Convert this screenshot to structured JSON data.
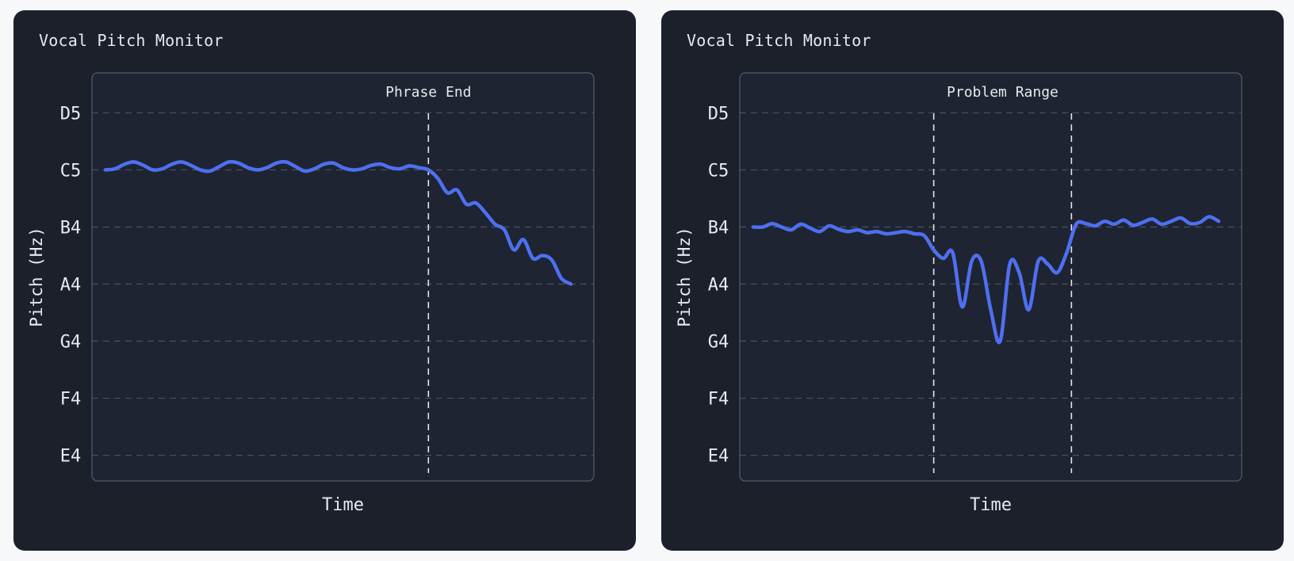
{
  "charts": [
    {
      "title": "Vocal Pitch Monitor",
      "chart_data": {
        "type": "line",
        "title": "Vocal Pitch Monitor",
        "xlabel": "Time",
        "ylabel": "Pitch (Hz)",
        "y_tick_labels": [
          "E4",
          "F4",
          "G4",
          "A4",
          "B4",
          "C5",
          "D5"
        ],
        "y_tick_values": [
          0,
          1,
          2,
          3,
          4,
          5,
          6
        ],
        "xlim": [
          0,
          100
        ],
        "ylim": [
          -0.45,
          6.7
        ],
        "grid": true,
        "markers": [
          {
            "x": 68,
            "label": "Phrase End"
          }
        ],
        "series": [
          {
            "color": "#4f6ff0",
            "x": [
              0,
              2,
              4,
              6,
              8,
              10,
              12,
              14,
              16,
              18,
              20,
              22,
              24,
              26,
              28,
              30,
              32,
              34,
              36,
              38,
              40,
              42,
              44,
              46,
              48,
              50,
              52,
              54,
              56,
              58,
              60,
              62,
              64,
              66,
              68,
              70,
              72,
              74,
              76,
              78,
              80,
              82,
              84,
              86,
              88,
              90,
              92,
              94,
              96,
              98
            ],
            "values": [
              5.0,
              5.02,
              5.1,
              5.14,
              5.08,
              5.0,
              5.02,
              5.1,
              5.14,
              5.08,
              5.0,
              4.98,
              5.06,
              5.14,
              5.12,
              5.04,
              5.0,
              5.04,
              5.12,
              5.14,
              5.06,
              4.98,
              5.02,
              5.1,
              5.12,
              5.04,
              5.0,
              5.02,
              5.08,
              5.1,
              5.04,
              5.02,
              5.07,
              5.04,
              5.0,
              4.85,
              4.6,
              4.65,
              4.4,
              4.42,
              4.25,
              4.05,
              3.95,
              3.6,
              3.78,
              3.45,
              3.5,
              3.42,
              3.1,
              3.0
            ]
          }
        ]
      }
    },
    {
      "title": "Vocal Pitch Monitor",
      "chart_data": {
        "type": "line",
        "title": "Vocal Pitch Monitor",
        "xlabel": "Time",
        "ylabel": "Pitch (Hz)",
        "y_tick_labels": [
          "E4",
          "F4",
          "G4",
          "A4",
          "B4",
          "C5",
          "D5"
        ],
        "y_tick_values": [
          0,
          1,
          2,
          3,
          4,
          5,
          6
        ],
        "xlim": [
          0,
          100
        ],
        "ylim": [
          -0.45,
          6.7
        ],
        "grid": true,
        "markers": [
          {
            "x": 38
          },
          {
            "x": 67
          }
        ],
        "band_label": "Problem Range",
        "series": [
          {
            "color": "#4f6ff0",
            "x": [
              0,
              2,
              4,
              6,
              8,
              10,
              12,
              14,
              16,
              18,
              20,
              22,
              24,
              26,
              28,
              30,
              32,
              34,
              36,
              38,
              40,
              42,
              44,
              46,
              48,
              50,
              52,
              54,
              56,
              58,
              60,
              62,
              64,
              66,
              68,
              70,
              72,
              74,
              76,
              78,
              80,
              82,
              84,
              86,
              88,
              90,
              92,
              94,
              96,
              98
            ],
            "values": [
              4.0,
              4.0,
              4.06,
              4.0,
              3.95,
              4.05,
              3.98,
              3.92,
              4.02,
              3.96,
              3.92,
              3.95,
              3.9,
              3.92,
              3.88,
              3.9,
              3.92,
              3.88,
              3.85,
              3.6,
              3.45,
              3.55,
              2.6,
              3.4,
              3.4,
              2.55,
              2.0,
              3.35,
              3.2,
              2.55,
              3.4,
              3.35,
              3.2,
              3.55,
              4.05,
              4.06,
              4.02,
              4.1,
              4.05,
              4.12,
              4.03,
              4.08,
              4.14,
              4.05,
              4.1,
              4.16,
              4.06,
              4.08,
              4.18,
              4.1
            ]
          }
        ]
      }
    }
  ]
}
